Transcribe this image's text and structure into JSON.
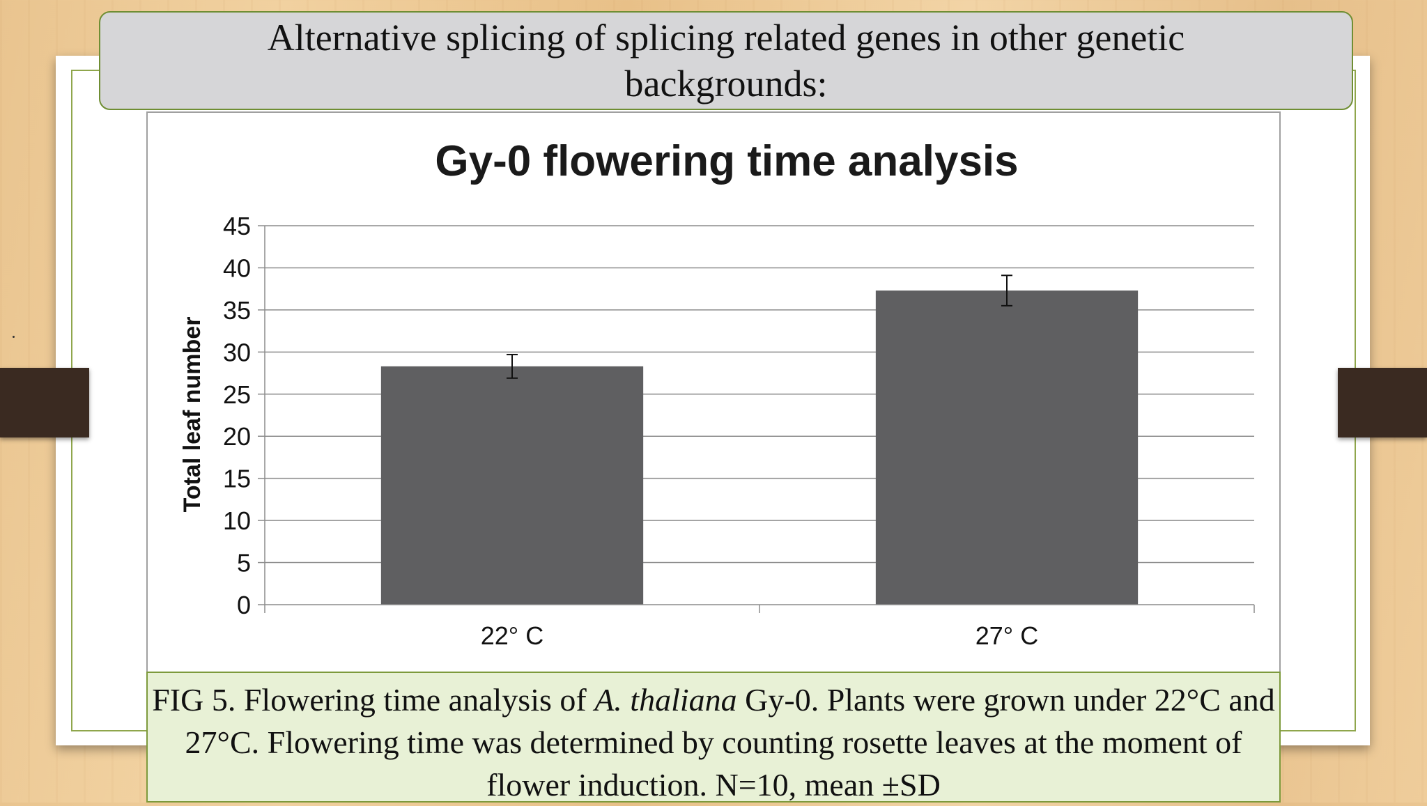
{
  "slide": {
    "title": "Alternative splicing of splicing related genes in other genetic backgrounds:"
  },
  "caption": {
    "prefix": "FIG 5. Flowering time analysis of ",
    "species": "A. thaliana",
    "suffix": " Gy-0.  Plants were grown under 22°C and 27°C. Flowering time was determined by counting rosette leaves at the moment of flower induction. N=10, mean ±SD"
  },
  "chart_data": {
    "type": "bar",
    "title": "Gy-0 flowering time analysis",
    "xlabel": "",
    "ylabel": "Total leaf number",
    "categories": [
      "22° C",
      "27° C"
    ],
    "values": [
      28.3,
      37.3
    ],
    "error": [
      1.4,
      1.8
    ],
    "ylim": [
      0,
      45
    ],
    "yticks": [
      0,
      5,
      10,
      15,
      20,
      25,
      30,
      35,
      40,
      45
    ],
    "grid": true,
    "legend": "none",
    "bar_color": "#5f5f61"
  }
}
